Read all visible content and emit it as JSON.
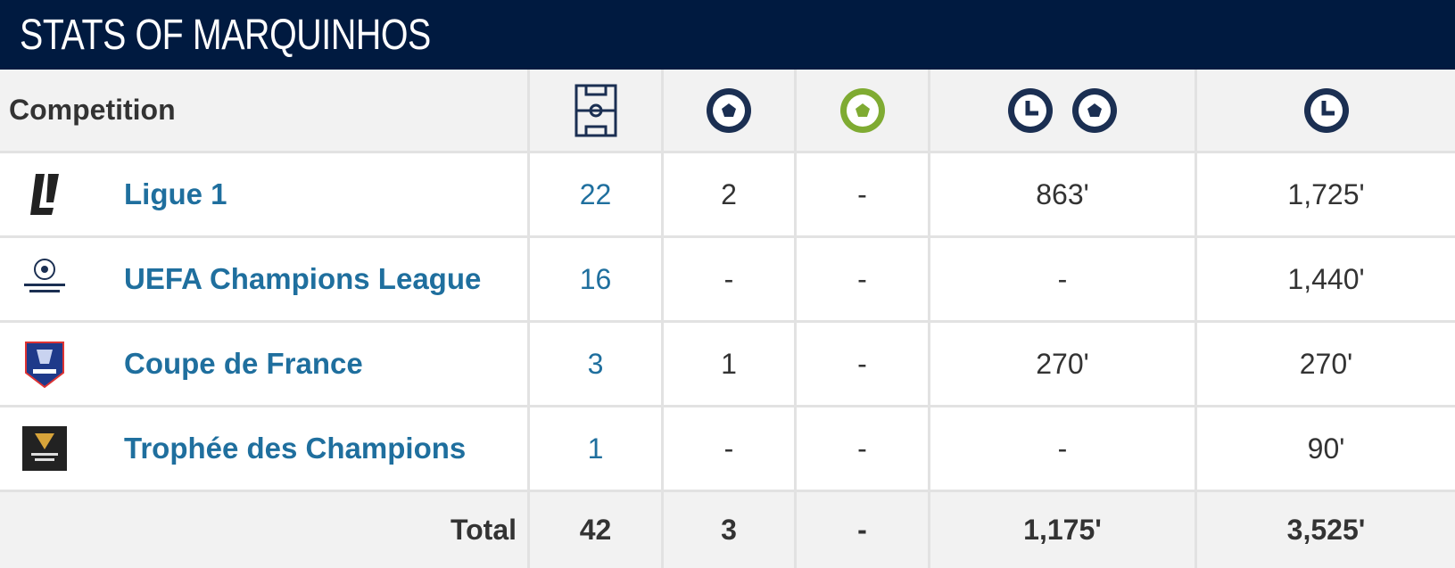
{
  "title": "STATS OF MARQUINHOS",
  "table": {
    "header": "Competition",
    "rows": [
      {
        "name": "Ligue 1",
        "cells": [
          "22",
          "2",
          "-",
          "863'",
          "1,725'"
        ]
      },
      {
        "name": "UEFA Champions League",
        "cells": [
          "16",
          "-",
          "-",
          "-",
          "1,440'"
        ]
      },
      {
        "name": "Coupe de France",
        "cells": [
          "3",
          "1",
          "-",
          "270'",
          "270'"
        ]
      },
      {
        "name": "Trophée des Champions",
        "cells": [
          "1",
          "-",
          "-",
          "-",
          "90'"
        ]
      }
    ],
    "total": {
      "label": "Total",
      "cells": [
        "42",
        "3",
        "-",
        "1,175'",
        "3,525'"
      ]
    }
  }
}
